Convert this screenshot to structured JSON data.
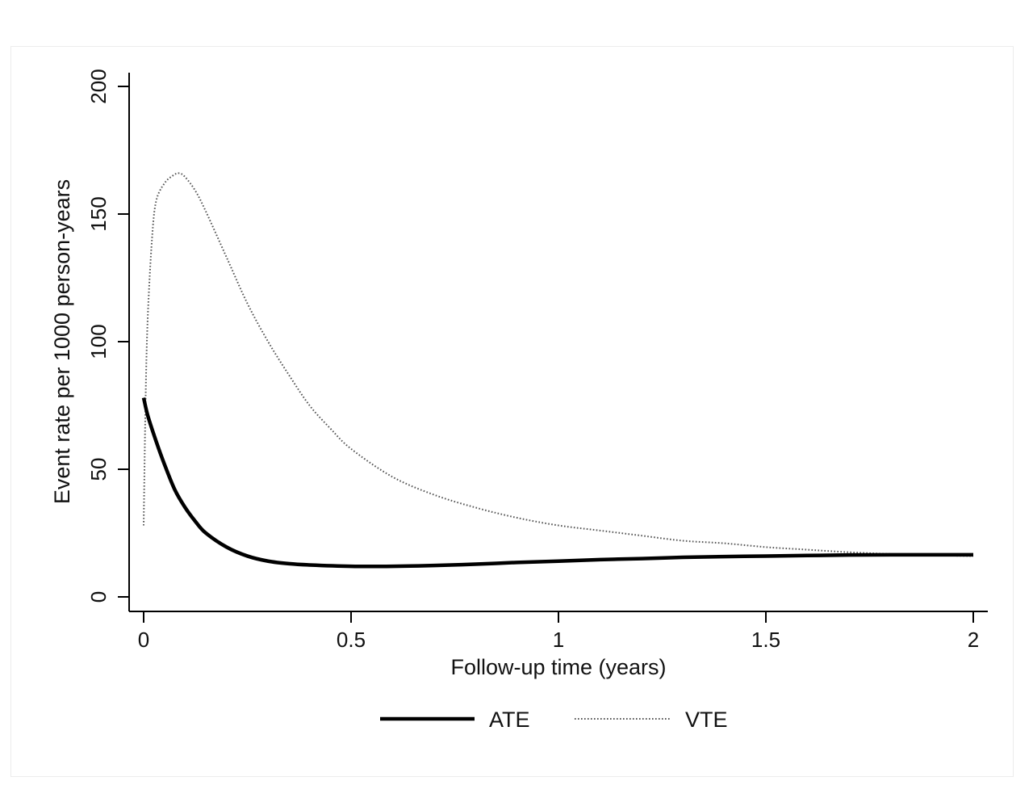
{
  "chart_data": {
    "type": "line",
    "title": "",
    "xlabel": "Follow-up time (years)",
    "ylabel": "Event rate per 1000 person-years",
    "xlim": [
      0,
      2
    ],
    "ylim": [
      0,
      200
    ],
    "x_ticks": [
      0,
      0.5,
      1,
      1.5,
      2
    ],
    "x_tick_labels": [
      "0",
      "0.5",
      "1",
      "1.5",
      "2"
    ],
    "y_ticks": [
      0,
      50,
      100,
      150,
      200
    ],
    "y_tick_labels": [
      "0",
      "50",
      "100",
      "150",
      "200"
    ],
    "grid": false,
    "legend_position": "bottom",
    "series": [
      {
        "name": "ATE",
        "style": "solid",
        "color": "#000000",
        "x": [
          0,
          0.01,
          0.03,
          0.05,
          0.075,
          0.1,
          0.125,
          0.15,
          0.2,
          0.25,
          0.3,
          0.35,
          0.4,
          0.5,
          0.6,
          0.7,
          0.8,
          0.9,
          1.0,
          1.1,
          1.2,
          1.3,
          1.4,
          1.5,
          1.6,
          1.7,
          1.8,
          1.9,
          2.0
        ],
        "y": [
          78,
          71,
          61,
          52,
          42,
          35,
          29.5,
          25,
          19.5,
          16,
          14,
          13,
          12.5,
          12,
          12,
          12.3,
          12.8,
          13.5,
          14,
          14.6,
          15,
          15.5,
          15.8,
          16,
          16.2,
          16.4,
          16.5,
          16.5,
          16.5
        ]
      },
      {
        "name": "VTE",
        "style": "dotted",
        "color": "#555555",
        "x": [
          0,
          0.005,
          0.01,
          0.02,
          0.03,
          0.05,
          0.07,
          0.085,
          0.1,
          0.125,
          0.15,
          0.2,
          0.25,
          0.3,
          0.35,
          0.4,
          0.45,
          0.5,
          0.6,
          0.7,
          0.8,
          0.9,
          1.0,
          1.1,
          1.2,
          1.3,
          1.4,
          1.5,
          1.6,
          1.7,
          1.8,
          1.9,
          2.0
        ],
        "y": [
          28,
          80,
          110,
          140,
          155,
          162,
          165,
          166,
          164.5,
          159,
          151,
          133,
          115,
          100,
          87,
          75,
          66,
          58,
          47,
          40,
          35,
          31,
          28,
          26,
          24,
          22,
          21,
          19.5,
          18.5,
          17.5,
          16.8,
          16.3,
          16
        ]
      }
    ]
  }
}
